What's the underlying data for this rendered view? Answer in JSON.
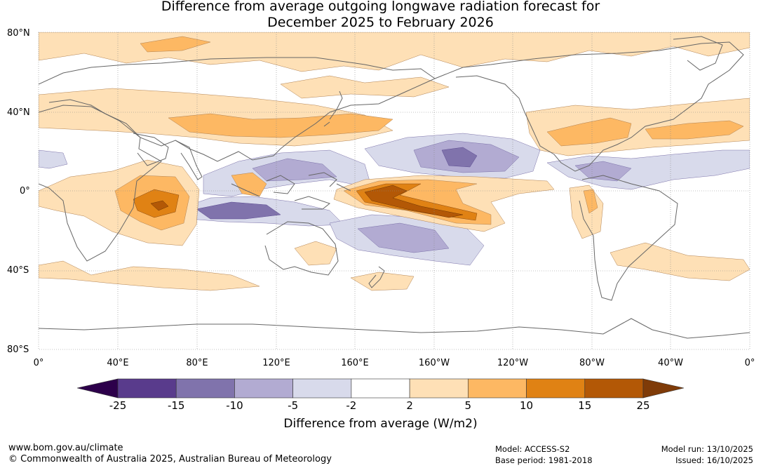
{
  "title": {
    "line1": "Difference from average outgoing longwave radiation forecast for",
    "line2": "December 2025 to February 2026"
  },
  "map": {
    "lat_labels": [
      "80°N",
      "40°N",
      "0°",
      "40°S",
      "80°S"
    ],
    "lon_labels": [
      "0°",
      "40°E",
      "80°E",
      "120°E",
      "160°E",
      "160°W",
      "120°W",
      "80°W",
      "40°W",
      "0°"
    ]
  },
  "colorbar": {
    "ticks": [
      "-25",
      "-15",
      "-10",
      "-5",
      "-2",
      "2",
      "5",
      "10",
      "15",
      "25"
    ],
    "colors": [
      "#593b8c",
      "#8073ac",
      "#b2abd2",
      "#d8daeb",
      "#ffffff",
      "#fee0b6",
      "#fdb863",
      "#e08214",
      "#b35806"
    ],
    "under_color": "#2d004b",
    "over_color": "#7f3b08",
    "label": "Difference from average (W/m2)"
  },
  "footer": {
    "url": "www.bom.gov.au/climate",
    "copyright": "© Commonwealth of Australia 2025, Australian Bureau of Meteorology",
    "model": "Model: ACCESS-S2",
    "base_period": "Base period: 1981-2018",
    "model_run": "Model run: 13/10/2025",
    "issued": "Issued: 16/10/2025"
  }
}
